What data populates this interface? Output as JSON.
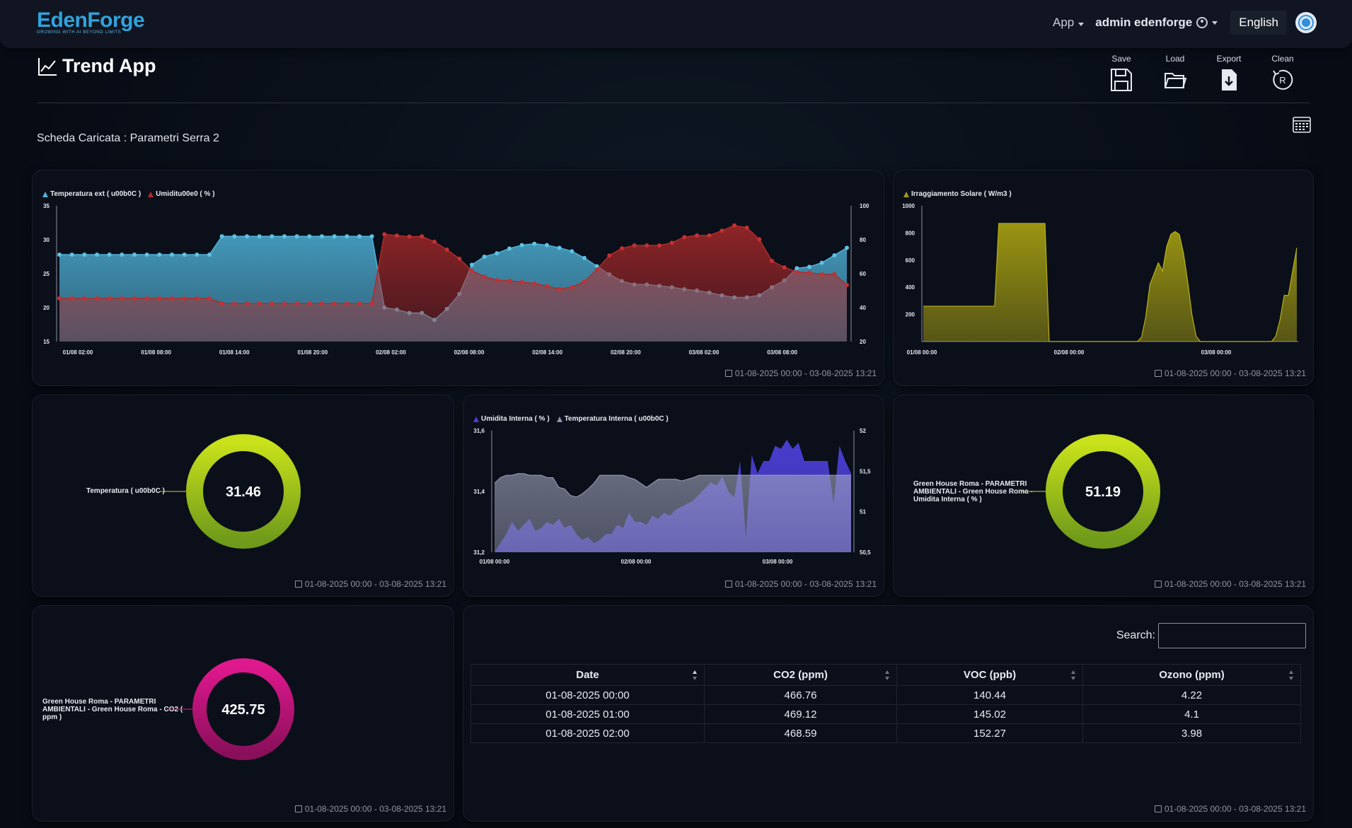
{
  "navbar": {
    "logo_text": "EdenForge",
    "logo_tagline": "GROWING WITH AI BEYOND LIMITS",
    "app_menu": "App",
    "user": "admin edenforge",
    "language": "English"
  },
  "header": {
    "title": "Trend App",
    "toolbar": {
      "save": "Save",
      "load": "Load",
      "export": "Export",
      "clean": "Clean"
    },
    "loaded_label": "Scheda Caricata : Parametri Serra 2"
  },
  "date_range": "01-08-2025 00:00 - 03-08-2025 13:21",
  "chart_data": [
    {
      "type": "area",
      "series": [
        {
          "name": "Temperatura ext ( u00b0C )",
          "color": "#4fb3d9",
          "axis": "left",
          "values": [
            27.8,
            27.8,
            27.8,
            27.8,
            27.8,
            27.8,
            27.8,
            27.8,
            27.8,
            27.8,
            27.8,
            27.8,
            27.8,
            30.5,
            30.5,
            30.5,
            30.5,
            30.5,
            30.5,
            30.5,
            30.5,
            30.5,
            30.5,
            30.5,
            30.5,
            30.5,
            20.0,
            19.7,
            19.2,
            19.2,
            18.2,
            19.8,
            22.0,
            26.3,
            27.5,
            28.0,
            28.7,
            29.2,
            29.4,
            29.2,
            28.8,
            28.3,
            27.3,
            26.1,
            24.9,
            23.9,
            23.4,
            23.4,
            23.2,
            23.0,
            22.7,
            22.5,
            22.2,
            21.8,
            21.5,
            21.5,
            21.8,
            23.0,
            24.0,
            25.8,
            26.0,
            26.6,
            27.7,
            28.8
          ]
        },
        {
          "name": "Umiditu00e0 ( % )",
          "color": "#b22a2a",
          "axis": "right",
          "values": [
            45.4,
            45.4,
            45.4,
            45.4,
            45.4,
            45.4,
            45.4,
            45.4,
            45.4,
            45.4,
            45.4,
            45.4,
            45.4,
            42.4,
            42.4,
            42.4,
            42.4,
            42.4,
            42.4,
            42.4,
            42.4,
            42.4,
            42.4,
            42.4,
            42.4,
            42.4,
            83.2,
            82.4,
            81.8,
            82.0,
            78.8,
            74.1,
            68.8,
            61.7,
            58.2,
            56.1,
            55.8,
            55.0,
            54.2,
            52.6,
            51.0,
            52.0,
            55.4,
            62.4,
            70.7,
            74.9,
            76.6,
            76.6,
            76.6,
            78.2,
            81.5,
            82.5,
            82.5,
            85.3,
            88.4,
            87.1,
            80.2,
            67.5,
            63.7,
            60.9,
            60.6,
            59.6,
            59.8,
            53.3
          ]
        }
      ],
      "x_ticks": [
        "01/08 02:00",
        "01/08 08:00",
        "01/08 14:00",
        "01/08 20:00",
        "02/08 02:00",
        "02/08 08:00",
        "02/08 14:00",
        "02/08 20:00",
        "03/08 02:00",
        "03/08 08:00"
      ],
      "y_left": {
        "ticks": [
          "15",
          "20",
          "25",
          "30",
          "35"
        ],
        "range": [
          15,
          35
        ]
      },
      "y_right": {
        "ticks": [
          "20",
          "40",
          "60",
          "80",
          "100"
        ],
        "range": [
          20,
          100
        ]
      }
    },
    {
      "type": "area",
      "series": [
        {
          "name": "Irraggiamento Solare ( W/m3 )",
          "color": "#a29c12",
          "values": [
            260,
            260,
            260,
            260,
            260,
            260,
            260,
            260,
            260,
            260,
            260,
            260,
            260,
            260,
            260,
            260,
            260,
            260,
            870,
            870,
            870,
            870,
            870,
            870,
            870,
            870,
            870,
            870,
            870,
            870,
            0,
            0,
            0,
            0,
            0,
            0,
            0,
            0,
            0,
            0,
            0,
            0,
            0,
            0,
            0,
            0,
            0,
            0,
            0,
            0,
            0,
            0,
            30,
            180,
            420,
            500,
            580,
            520,
            700,
            790,
            810,
            790,
            650,
            440,
            200,
            40,
            0,
            0,
            0,
            0,
            0,
            0,
            0,
            0,
            0,
            0,
            0,
            0,
            0,
            0,
            0,
            0,
            0,
            0,
            40,
            160,
            340,
            340,
            520,
            690
          ]
        }
      ],
      "x_ticks": [
        "01/08 00:00",
        "02/08 00:00",
        "03/08 00:00"
      ],
      "y": {
        "ticks": [
          "200",
          "400",
          "600",
          "800",
          "1000"
        ],
        "range": [
          0,
          1000
        ]
      }
    },
    {
      "type": "area",
      "series": [
        {
          "name": "Umidita Interna ( % )",
          "color": "#4b3fd6",
          "axis": "left",
          "values": [
            31.2,
            31.23,
            31.26,
            31.3,
            31.27,
            31.29,
            31.31,
            31.27,
            31.28,
            31.3,
            31.29,
            31.31,
            31.28,
            31.29,
            31.26,
            31.24,
            31.25,
            31.23,
            31.24,
            31.26,
            31.26,
            31.29,
            31.28,
            31.33,
            31.3,
            31.3,
            31.29,
            31.32,
            31.31,
            31.33,
            31.32,
            31.34,
            31.35,
            31.36,
            31.37,
            31.39,
            31.41,
            31.43,
            31.42,
            31.45,
            31.4,
            31.38,
            31.5,
            31.25,
            31.52,
            31.46,
            31.5,
            31.5,
            31.55,
            31.54,
            31.57,
            31.54,
            31.56,
            31.5,
            31.5,
            31.5,
            31.5,
            31.5,
            31.36,
            31.55,
            31.5,
            31.46
          ]
        },
        {
          "name": "Temperatura Interna ( u00b0C )",
          "color": "#8f93ad",
          "axis": "right",
          "values": [
            51.35,
            51.42,
            51.45,
            51.45,
            51.47,
            51.47,
            51.45,
            51.45,
            51.45,
            51.42,
            51.42,
            51.3,
            51.28,
            51.2,
            51.18,
            51.22,
            51.28,
            51.35,
            51.45,
            51.45,
            51.45,
            51.45,
            51.45,
            51.42,
            51.4,
            51.35,
            51.3,
            51.35,
            51.4,
            51.4,
            51.4,
            51.4,
            51.38,
            51.4,
            51.42,
            51.45,
            51.45,
            51.45,
            51.45,
            51.45,
            51.45,
            51.45,
            51.45,
            51.45,
            51.45,
            51.45,
            51.45,
            51.45,
            51.45,
            51.45,
            51.45,
            51.45,
            51.45,
            51.45,
            51.45,
            51.45,
            51.45,
            51.45,
            51.45,
            51.45,
            51.45,
            51.45
          ]
        }
      ],
      "x_ticks": [
        "01/08 00:00",
        "02/08 00:00",
        "03/08 00:00"
      ],
      "y_left": {
        "ticks": [
          "31,2",
          "31,4",
          "31,6"
        ],
        "range": [
          31.2,
          31.6
        ]
      },
      "y_right": {
        "ticks": [
          "50,5",
          "51",
          "51,5",
          "52"
        ],
        "range": [
          50.5,
          52
        ]
      }
    }
  ],
  "gauges": {
    "temp": {
      "label": "Temperatura ( u00b0C )",
      "value": "31.46",
      "color_a": "#c9e21b",
      "color_b": "#6f9a1a"
    },
    "humidity": {
      "label_lines": [
        "Green House Roma - PARAMETRI",
        "AMBIENTALI - Green House Roma -",
        "Umidita Interna ( % )"
      ],
      "value": "51.19",
      "color_a": "#c9e21b",
      "color_b": "#6f9a1a"
    },
    "co2": {
      "label_lines": [
        "Green House Roma - PARAMETRI",
        "AMBIENTALI - Green House Roma - CO2 (",
        "ppm )"
      ],
      "value": "425.75",
      "color_a": "#e0188e",
      "color_b": "#8a0f5a"
    }
  },
  "table": {
    "search_label": "Search:",
    "search_value": "",
    "columns": [
      "Date",
      "CO2 (ppm)",
      "VOC (ppb)",
      "Ozono (ppm)"
    ],
    "rows": [
      [
        "01-08-2025 00:00",
        "466.76",
        "140.44",
        "4.22"
      ],
      [
        "01-08-2025 01:00",
        "469.12",
        "145.02",
        "4.1"
      ],
      [
        "01-08-2025 02:00",
        "468.59",
        "152.27",
        "3.98"
      ]
    ]
  }
}
